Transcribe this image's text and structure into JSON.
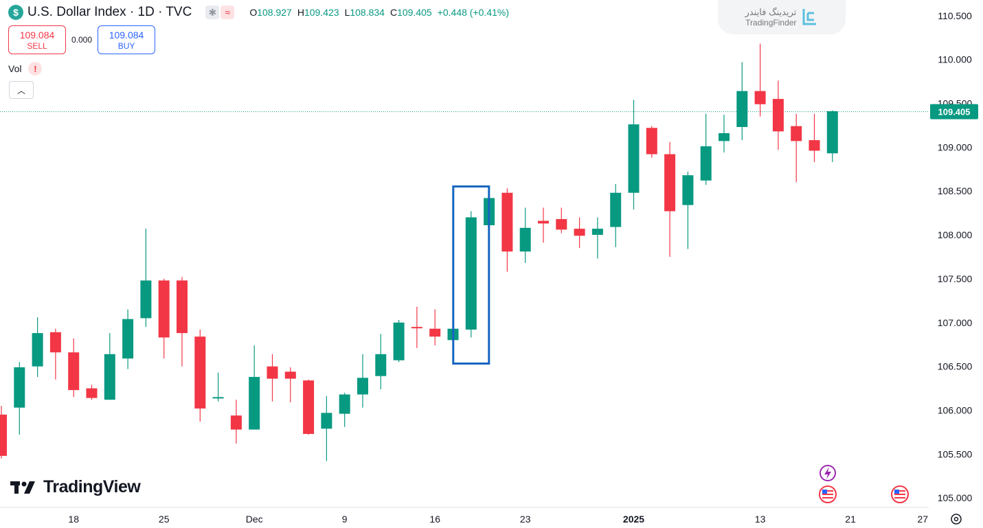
{
  "header": {
    "currency_symbol": "$",
    "title": "U.S. Dollar Index · 1D · TVC",
    "ohlc": {
      "o_label": "O",
      "o": "108.927",
      "h_label": "H",
      "h": "109.423",
      "l_label": "L",
      "l": "108.834",
      "c_label": "C",
      "c": "109.405",
      "change": "+0.448 (+0.41%)"
    }
  },
  "trade": {
    "sell_price": "109.084",
    "sell_label": "SELL",
    "spread": "0.000",
    "buy_price": "109.084",
    "buy_label": "BUY"
  },
  "volume": {
    "label": "Vol",
    "warning": "!"
  },
  "watermark": {
    "fa": "تریدینگ فایندر",
    "en": "TradingFinder",
    "logo": "TradingView"
  },
  "colors": {
    "up": "#089981",
    "down": "#f23645",
    "highlight": "#1565c0",
    "price_label": "#089981"
  },
  "chart_data": {
    "type": "candlestick",
    "current_price": 109.405,
    "y_range": [
      104.9,
      110.6
    ],
    "y_ticks": [
      "105.000",
      "105.500",
      "106.000",
      "106.500",
      "107.000",
      "107.500",
      "108.000",
      "108.500",
      "109.000",
      "109.500",
      "110.000",
      "110.500"
    ],
    "x_labels": [
      {
        "index": 4,
        "label": "18",
        "bold": false
      },
      {
        "index": 9,
        "label": "25",
        "bold": false
      },
      {
        "index": 14,
        "label": "Dec",
        "bold": false
      },
      {
        "index": 19,
        "label": "9",
        "bold": false
      },
      {
        "index": 24,
        "label": "16",
        "bold": false
      },
      {
        "index": 29,
        "label": "23",
        "bold": false
      },
      {
        "index": 35,
        "label": "2025",
        "bold": true
      },
      {
        "index": 42,
        "label": "13",
        "bold": false
      },
      {
        "index": 47,
        "label": "21",
        "bold": false
      },
      {
        "index": 51,
        "label": "27",
        "bold": false
      }
    ],
    "candles": [
      {
        "o": 105.95,
        "h": 106.05,
        "l": 105.45,
        "c": 105.48
      },
      {
        "o": 106.03,
        "h": 106.55,
        "l": 105.72,
        "c": 106.49
      },
      {
        "o": 106.5,
        "h": 107.06,
        "l": 106.38,
        "c": 106.88
      },
      {
        "o": 106.89,
        "h": 106.93,
        "l": 106.35,
        "c": 106.66
      },
      {
        "o": 106.66,
        "h": 106.82,
        "l": 106.15,
        "c": 106.23
      },
      {
        "o": 106.25,
        "h": 106.29,
        "l": 106.12,
        "c": 106.14
      },
      {
        "o": 106.12,
        "h": 106.88,
        "l": 106.12,
        "c": 106.64
      },
      {
        "o": 106.59,
        "h": 107.15,
        "l": 106.47,
        "c": 107.04
      },
      {
        "o": 107.05,
        "h": 108.07,
        "l": 106.95,
        "c": 107.48
      },
      {
        "o": 107.48,
        "h": 107.5,
        "l": 106.59,
        "c": 106.83
      },
      {
        "o": 107.48,
        "h": 107.52,
        "l": 106.5,
        "c": 106.88
      },
      {
        "o": 106.84,
        "h": 106.92,
        "l": 105.87,
        "c": 106.02
      },
      {
        "o": 106.15,
        "h": 106.43,
        "l": 106.1,
        "c": 106.15
      },
      {
        "o": 105.94,
        "h": 106.12,
        "l": 105.62,
        "c": 105.78
      },
      {
        "o": 105.78,
        "h": 106.74,
        "l": 105.78,
        "c": 106.38
      },
      {
        "o": 106.5,
        "h": 106.64,
        "l": 106.1,
        "c": 106.36
      },
      {
        "o": 106.44,
        "h": 106.49,
        "l": 106.09,
        "c": 106.36
      },
      {
        "o": 106.34,
        "h": 106.35,
        "l": 105.72,
        "c": 105.73
      },
      {
        "o": 105.79,
        "h": 106.16,
        "l": 105.42,
        "c": 105.97
      },
      {
        "o": 105.96,
        "h": 106.2,
        "l": 105.81,
        "c": 106.18
      },
      {
        "o": 106.18,
        "h": 106.64,
        "l": 106.03,
        "c": 106.37
      },
      {
        "o": 106.39,
        "h": 106.87,
        "l": 106.24,
        "c": 106.64
      },
      {
        "o": 106.57,
        "h": 107.03,
        "l": 106.55,
        "c": 107.0
      },
      {
        "o": 106.95,
        "h": 107.18,
        "l": 106.71,
        "c": 106.94
      },
      {
        "o": 106.93,
        "h": 107.15,
        "l": 106.74,
        "c": 106.84
      },
      {
        "o": 106.8,
        "h": 106.94,
        "l": 106.79,
        "c": 106.93
      },
      {
        "o": 106.92,
        "h": 108.27,
        "l": 106.83,
        "c": 108.2
      },
      {
        "o": 108.11,
        "h": 108.45,
        "l": 108.09,
        "c": 108.42
      },
      {
        "o": 108.48,
        "h": 108.53,
        "l": 107.58,
        "c": 107.81
      },
      {
        "o": 107.81,
        "h": 108.31,
        "l": 107.68,
        "c": 108.08
      },
      {
        "o": 108.16,
        "h": 108.31,
        "l": 107.91,
        "c": 108.13
      },
      {
        "o": 108.18,
        "h": 108.31,
        "l": 108.02,
        "c": 108.06
      },
      {
        "o": 108.07,
        "h": 108.2,
        "l": 107.85,
        "c": 107.99
      },
      {
        "o": 108.0,
        "h": 108.2,
        "l": 107.73,
        "c": 108.07
      },
      {
        "o": 108.09,
        "h": 108.58,
        "l": 107.86,
        "c": 108.48
      },
      {
        "o": 108.48,
        "h": 109.54,
        "l": 108.29,
        "c": 109.26
      },
      {
        "o": 109.22,
        "h": 109.24,
        "l": 108.88,
        "c": 108.92
      },
      {
        "o": 108.92,
        "h": 109.06,
        "l": 107.75,
        "c": 108.27
      },
      {
        "o": 108.34,
        "h": 108.72,
        "l": 107.84,
        "c": 108.68
      },
      {
        "o": 108.62,
        "h": 109.38,
        "l": 108.57,
        "c": 109.01
      },
      {
        "o": 109.07,
        "h": 109.37,
        "l": 108.94,
        "c": 109.16
      },
      {
        "o": 109.23,
        "h": 109.97,
        "l": 109.08,
        "c": 109.64
      },
      {
        "o": 109.64,
        "h": 110.18,
        "l": 109.35,
        "c": 109.49
      },
      {
        "o": 109.55,
        "h": 109.76,
        "l": 108.97,
        "c": 109.18
      },
      {
        "o": 109.24,
        "h": 109.38,
        "l": 108.6,
        "c": 109.07
      },
      {
        "o": 109.08,
        "h": 109.38,
        "l": 108.83,
        "c": 108.96
      },
      {
        "o": 108.93,
        "h": 109.42,
        "l": 108.83,
        "c": 109.41
      }
    ],
    "highlight_index": 26
  }
}
